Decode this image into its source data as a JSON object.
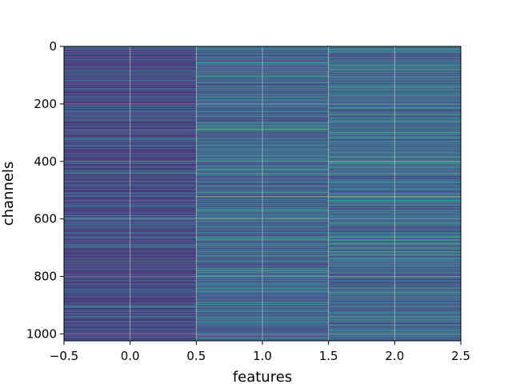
{
  "chart_data": {
    "type": "heatmap",
    "title": "",
    "xlabel": "features",
    "ylabel": "channels",
    "xlim": [
      -0.5,
      2.5
    ],
    "ylim": [
      1024,
      0
    ],
    "x_ticks": [
      -0.5,
      0.0,
      0.5,
      1.0,
      1.5,
      2.0,
      2.5
    ],
    "x_tick_labels": [
      "−0.5",
      "0.0",
      "0.5",
      "1.0",
      "1.5",
      "2.0",
      "2.5"
    ],
    "y_ticks": [
      0,
      200,
      400,
      600,
      800,
      1000
    ],
    "y_tick_labels": [
      "0",
      "200",
      "400",
      "600",
      "800",
      "1000"
    ],
    "grid": true,
    "colormap": "viridis",
    "columns": [
      0,
      1,
      2
    ],
    "rows": 1024,
    "notable_rows": [
      {
        "row": 441,
        "values": [
          0.55,
          0.8,
          0.8
        ]
      },
      {
        "row": 522,
        "values": [
          0.35,
          0.95,
          0.95
        ]
      },
      {
        "row": 747,
        "values": [
          0.6,
          0.6,
          0.6
        ]
      },
      {
        "row": 957,
        "values": [
          0.4,
          0.65,
          0.65
        ]
      }
    ]
  }
}
